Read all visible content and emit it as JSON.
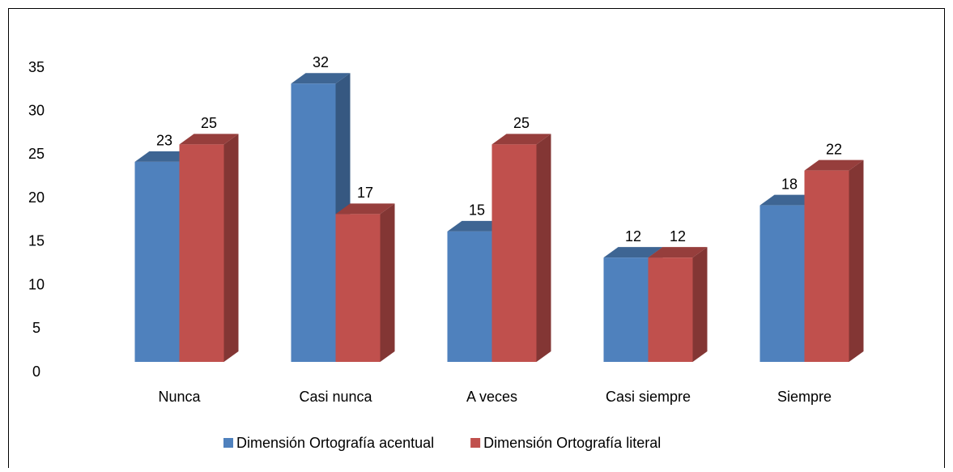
{
  "chart_data": {
    "type": "bar3d",
    "categories": [
      "Nunca",
      "Casi nunca",
      "A veces",
      "Casi siempre",
      "Siempre"
    ],
    "series": [
      {
        "name": "Dimensión Ortografía acentual",
        "color": "#4f81bd",
        "values": [
          23,
          32,
          15,
          12,
          18
        ]
      },
      {
        "name": "Dimensión Ortografía literal",
        "color": "#c0504d",
        "values": [
          25,
          17,
          25,
          12,
          22
        ]
      }
    ],
    "ylim": [
      0,
      35
    ],
    "yticks": [
      0,
      5,
      10,
      15,
      20,
      25,
      30,
      35
    ],
    "legend": "bottom"
  }
}
